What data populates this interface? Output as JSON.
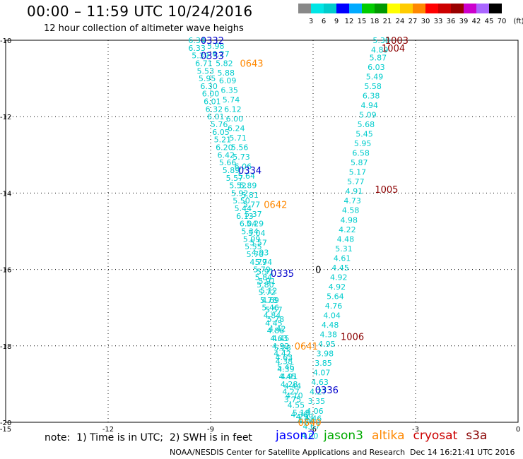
{
  "header": {
    "title": "00:00 – 11:59 UTC 10/24/2016",
    "subtitle": "12 hour collection of altimeter wave heighs"
  },
  "colorbar": {
    "colors": [
      "#888888",
      "#00e5e5",
      "#00cccc",
      "#0000ff",
      "#00aaff",
      "#00cc00",
      "#009900",
      "#ffff00",
      "#ffcc00",
      "#ff8800",
      "#ff0000",
      "#cc0000",
      "#990000",
      "#cc00cc",
      "#aa66ff",
      "#000000"
    ],
    "labels": [
      "3",
      "6",
      "9",
      "12",
      "15",
      "18",
      "21",
      "24",
      "27",
      "30",
      "33",
      "36",
      "39",
      "42",
      "45",
      "70",
      "(ft)"
    ]
  },
  "chart_data": {
    "type": "scatter",
    "xlim": [
      -15,
      0
    ],
    "ylim": [
      -20,
      -10
    ],
    "x_ticks": [
      "-15",
      "-12",
      "-9",
      "-6",
      "-3",
      "0"
    ],
    "y_ticks": [
      "-10",
      "-12",
      "-14",
      "-16",
      "-18",
      "-20"
    ],
    "grid": true,
    "series": [
      {
        "name": "jason2",
        "color": "#00cccc",
        "points": [
          [
            -9.4,
            -10.0,
            "6.34"
          ],
          [
            -9.4,
            -10.2,
            "6.33"
          ],
          [
            -9.3,
            -10.4,
            "5.39"
          ],
          [
            -9.2,
            -10.6,
            "6.71"
          ],
          [
            -9.15,
            -10.8,
            "5.53"
          ],
          [
            -9.1,
            -11.0,
            "5.95"
          ],
          [
            -9.05,
            -11.2,
            "6.30"
          ],
          [
            -9.0,
            -11.4,
            "6.00"
          ],
          [
            -8.95,
            -11.6,
            "6.01"
          ],
          [
            -8.9,
            -11.8,
            "6.32"
          ],
          [
            -8.85,
            -12.0,
            "6.01"
          ],
          [
            -8.75,
            -12.2,
            "5.76"
          ],
          [
            -8.7,
            -12.4,
            "6.05"
          ],
          [
            -8.65,
            -12.6,
            "5.21"
          ],
          [
            -8.6,
            -12.8,
            "6.20"
          ],
          [
            -8.55,
            -13.0,
            "6.42"
          ],
          [
            -8.5,
            -13.2,
            "5.66"
          ],
          [
            -8.4,
            -13.4,
            "5.89"
          ],
          [
            -8.3,
            -13.6,
            "5.57"
          ],
          [
            -8.2,
            -13.8,
            "5.52"
          ],
          [
            -8.15,
            -14.0,
            "5.92"
          ],
          [
            -8.1,
            -14.2,
            "5.50"
          ],
          [
            -8.05,
            -14.4,
            "5.44"
          ],
          [
            -8.0,
            -14.6,
            "6.13"
          ],
          [
            -7.9,
            -14.8,
            "6.04"
          ],
          [
            -7.85,
            -15.0,
            "5.34"
          ],
          [
            -7.8,
            -15.2,
            "5.09"
          ],
          [
            -7.75,
            -15.4,
            "5.55"
          ],
          [
            -7.7,
            -15.6,
            "5.70"
          ],
          [
            -7.6,
            -15.8,
            "4.79"
          ],
          [
            -7.5,
            -16.0,
            "5.79"
          ],
          [
            -7.45,
            -16.2,
            "5.84"
          ],
          [
            -7.4,
            -16.4,
            "5.80"
          ],
          [
            -7.35,
            -16.6,
            "5.72"
          ],
          [
            -7.3,
            -16.8,
            "5.78"
          ],
          [
            -7.25,
            -17.0,
            "5.46"
          ],
          [
            -7.2,
            -17.2,
            "4.84"
          ],
          [
            -7.15,
            -17.4,
            "4.45"
          ],
          [
            -7.1,
            -17.6,
            "4.86"
          ],
          [
            -7.0,
            -17.8,
            "4.63"
          ],
          [
            -6.95,
            -18.0,
            "4.92"
          ],
          [
            -6.9,
            -18.2,
            "4.42"
          ],
          [
            -6.85,
            -18.4,
            "4.38"
          ],
          [
            -6.8,
            -18.6,
            "4.39"
          ],
          [
            -6.75,
            -18.8,
            "4.45"
          ],
          [
            -6.7,
            -19.0,
            "4.28"
          ],
          [
            -6.65,
            -19.2,
            "4.27"
          ],
          [
            -6.6,
            -19.4,
            "3.75"
          ],
          [
            -8.85,
            -10.15,
            "5.98"
          ],
          [
            -8.7,
            -10.35,
            "6.27"
          ],
          [
            -8.6,
            -10.6,
            "5.82"
          ],
          [
            -8.55,
            -10.85,
            "5.88"
          ],
          [
            -8.5,
            -11.05,
            "6.09"
          ],
          [
            -8.45,
            -11.3,
            "6.35"
          ],
          [
            -8.4,
            -11.55,
            "5.74"
          ],
          [
            -8.35,
            -11.8,
            "6.12"
          ],
          [
            -8.3,
            -12.05,
            "6.00"
          ],
          [
            -8.25,
            -12.3,
            "6.24"
          ],
          [
            -8.2,
            -12.55,
            "5.71"
          ],
          [
            -8.15,
            -12.8,
            "5.56"
          ],
          [
            -8.1,
            -13.05,
            "5.73"
          ],
          [
            -8.05,
            -13.3,
            "6.06"
          ],
          [
            -7.95,
            -13.55,
            "5.64"
          ],
          [
            -7.9,
            -13.8,
            "5.89"
          ],
          [
            -7.85,
            -14.05,
            "5.81"
          ],
          [
            -7.8,
            -14.3,
            "5.77"
          ],
          [
            -7.75,
            -14.55,
            "5.37"
          ],
          [
            -7.7,
            -14.8,
            "5.29"
          ],
          [
            -7.65,
            -15.05,
            "5.04"
          ],
          [
            -7.6,
            -15.3,
            "5.57"
          ],
          [
            -7.55,
            -15.55,
            "4.93"
          ],
          [
            -7.45,
            -15.8,
            "5.74"
          ],
          [
            -7.4,
            -16.05,
            "5.91"
          ],
          [
            -7.35,
            -16.3,
            "5.91"
          ],
          [
            -7.3,
            -16.55,
            "5.12"
          ],
          [
            -7.25,
            -16.8,
            "4.69"
          ],
          [
            -7.15,
            -17.05,
            "5.57"
          ],
          [
            -7.1,
            -17.3,
            "5.78"
          ],
          [
            -7.05,
            -17.55,
            "4.42"
          ],
          [
            -6.95,
            -17.8,
            "4.45"
          ],
          [
            -6.9,
            -18.05,
            "5.28"
          ],
          [
            -6.85,
            -18.3,
            "4.63"
          ],
          [
            -6.8,
            -18.55,
            "5.46"
          ],
          [
            -6.7,
            -18.8,
            "4.91"
          ],
          [
            -6.6,
            -19.05,
            "4.44"
          ],
          [
            -6.55,
            -19.3,
            "4.10"
          ],
          [
            -6.5,
            -19.55,
            "4.55"
          ],
          [
            -6.4,
            -19.8,
            "4.30"
          ],
          [
            -6.35,
            -19.75,
            "5.18"
          ],
          [
            -6.25,
            -19.85,
            "4.59"
          ],
          [
            -6.2,
            -19.95,
            "4.04"
          ],
          [
            -4.0,
            -10.0,
            "5.38"
          ],
          [
            -4.05,
            -10.25,
            "4.89"
          ],
          [
            -4.1,
            -10.45,
            "5.87"
          ],
          [
            -4.15,
            -10.7,
            "6.03"
          ],
          [
            -4.2,
            -10.95,
            "5.49"
          ],
          [
            -4.25,
            -11.2,
            "5.58"
          ],
          [
            -4.3,
            -11.45,
            "6.38"
          ],
          [
            -4.35,
            -11.7,
            "4.94"
          ],
          [
            -4.4,
            -11.95,
            "5.09"
          ],
          [
            -4.45,
            -12.2,
            "5.68"
          ],
          [
            -4.5,
            -12.45,
            "5.45"
          ],
          [
            -4.55,
            -12.7,
            "5.95"
          ],
          [
            -4.6,
            -12.95,
            "6.58"
          ],
          [
            -4.65,
            -13.2,
            "5.87"
          ],
          [
            -4.7,
            -13.45,
            "5.17"
          ],
          [
            -4.75,
            -13.7,
            "5.77"
          ],
          [
            -4.8,
            -13.95,
            "4.91"
          ],
          [
            -4.85,
            -14.2,
            "4.73"
          ],
          [
            -4.9,
            -14.45,
            "4.58"
          ],
          [
            -4.95,
            -14.7,
            "4.98"
          ],
          [
            -5.0,
            -14.95,
            "4.22"
          ],
          [
            -5.05,
            -15.2,
            "4.48"
          ],
          [
            -5.1,
            -15.45,
            "5.31"
          ],
          [
            -5.15,
            -15.7,
            "4.61"
          ],
          [
            -5.2,
            -15.95,
            "4.45"
          ],
          [
            -5.25,
            -16.2,
            "4.92"
          ],
          [
            -5.3,
            -16.45,
            "4.92"
          ],
          [
            -5.35,
            -16.7,
            "5.64"
          ],
          [
            -5.4,
            -16.95,
            "4.76"
          ],
          [
            -5.45,
            -17.2,
            "4.04"
          ],
          [
            -5.5,
            -17.45,
            "4.48"
          ],
          [
            -5.55,
            -17.7,
            "4.38"
          ],
          [
            -5.6,
            -17.95,
            "4.95"
          ],
          [
            -5.65,
            -18.2,
            "3.98"
          ],
          [
            -5.7,
            -18.45,
            "3.85"
          ],
          [
            -5.75,
            -18.7,
            "4.07"
          ],
          [
            -5.8,
            -18.95,
            "4.63"
          ],
          [
            -5.85,
            -19.2,
            "4.27"
          ],
          [
            -5.9,
            -19.45,
            "3.35"
          ],
          [
            -5.95,
            -19.7,
            "4.06"
          ],
          [
            -6.0,
            -19.9,
            "4.46"
          ],
          [
            -6.05,
            -20.1,
            "4.67"
          ],
          [
            -6.1,
            -20.35,
            "4.00"
          ]
        ]
      },
      {
        "name": "altika",
        "color": "#ff8800",
        "points": []
      }
    ],
    "time_labels": [
      {
        "x": -8.95,
        "y": -10.0,
        "text": "0332",
        "color": "#0000cc"
      },
      {
        "x": -8.95,
        "y": -10.4,
        "text": "0333",
        "color": "#0000cc"
      },
      {
        "x": -7.8,
        "y": -10.6,
        "text": "0643",
        "color": "#ff8800"
      },
      {
        "x": -7.85,
        "y": -13.4,
        "text": "0334",
        "color": "#0000cc"
      },
      {
        "x": -7.1,
        "y": -14.3,
        "text": "0642",
        "color": "#ff8800"
      },
      {
        "x": -6.9,
        "y": -16.1,
        "text": "0335",
        "color": "#0000cc"
      },
      {
        "x": -6.2,
        "y": -18.0,
        "text": "0641",
        "color": "#ff8800"
      },
      {
        "x": -5.6,
        "y": -19.15,
        "text": "0336",
        "color": "#0000cc"
      },
      {
        "x": -6.1,
        "y": -20.0,
        "text": "0640",
        "color": "#ff8800"
      },
      {
        "x": -3.55,
        "y": -10.0,
        "text": "1003",
        "color": "#8b0000"
      },
      {
        "x": -3.65,
        "y": -10.2,
        "text": "1004",
        "color": "#8b0000"
      },
      {
        "x": -3.85,
        "y": -13.9,
        "text": "1005",
        "color": "#8b0000"
      },
      {
        "x": -4.85,
        "y": -17.75,
        "text": "1006",
        "color": "#8b0000"
      },
      {
        "x": -5.85,
        "y": -16.0,
        "text": "0",
        "color": "#000000"
      }
    ]
  },
  "note": "note:  1) Time is in UTC;  2) SWH is in feet",
  "sat_legend": [
    {
      "name": "jason2",
      "color": "#0000ff"
    },
    {
      "name": "jason3",
      "color": "#00aa00"
    },
    {
      "name": "altika",
      "color": "#ff8800"
    },
    {
      "name": "cryosat",
      "color": "#cc0000"
    },
    {
      "name": "s3a",
      "color": "#880000"
    }
  ],
  "footer_left": "NOAA/NESDIS Center for Satellite Applications and Research",
  "footer_right": "Dec 14 16:21:41 UTC 2016"
}
